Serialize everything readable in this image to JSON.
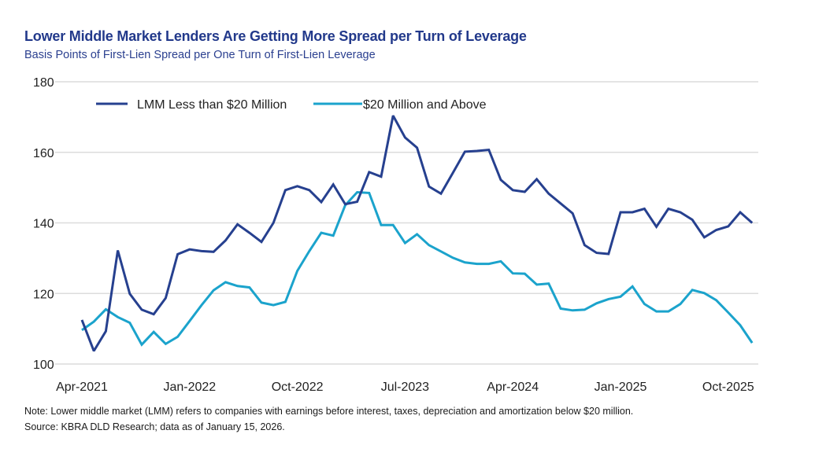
{
  "header": {
    "title": "Lower Middle Market Lenders Are Getting More Spread per Turn of Leverage",
    "subtitle": "Basis Points of First-Lien Spread per One Turn of First-Lien Leverage"
  },
  "footer": {
    "note": "Note: Lower middle market (LMM) refers to companies with earnings before interest, taxes, depreciation and amortization below $20 million.",
    "source": "Source: KBRA DLD Research; data as of January 15, 2026."
  },
  "chart_data": {
    "type": "line",
    "title": "Lower Middle Market Lenders Are Getting More Spread per Turn of Leverage",
    "subtitle": "Basis Points of First-Lien Spread per One Turn of First-Lien Leverage",
    "xlabel": "",
    "ylabel": "",
    "ylim": [
      100,
      180
    ],
    "yticks": [
      100,
      120,
      140,
      160,
      180
    ],
    "grid": "horizontal",
    "legend_position": "top-left",
    "x": [
      "Apr-2021",
      "May-2021",
      "Jun-2021",
      "Jul-2021",
      "Aug-2021",
      "Sep-2021",
      "Oct-2021",
      "Nov-2021",
      "Dec-2021",
      "Jan-2022",
      "Feb-2022",
      "Mar-2022",
      "Apr-2022",
      "May-2022",
      "Jun-2022",
      "Jul-2022",
      "Aug-2022",
      "Sep-2022",
      "Oct-2022",
      "Nov-2022",
      "Dec-2022",
      "Jan-2023",
      "Feb-2023",
      "Mar-2023",
      "Apr-2023",
      "May-2023",
      "Jun-2023",
      "Jul-2023",
      "Aug-2023",
      "Sep-2023",
      "Oct-2023",
      "Nov-2023",
      "Dec-2023",
      "Jan-2024",
      "Feb-2024",
      "Mar-2024",
      "Apr-2024",
      "May-2024",
      "Jun-2024",
      "Jul-2024",
      "Aug-2024",
      "Sep-2024",
      "Oct-2024",
      "Nov-2024",
      "Dec-2024",
      "Jan-2025",
      "Feb-2025",
      "Mar-2025",
      "Apr-2025",
      "May-2025",
      "Jun-2025",
      "Jul-2025",
      "Aug-2025",
      "Sep-2025",
      "Oct-2025",
      "Nov-2025",
      "Dec-2025"
    ],
    "xtick_labels": [
      "Apr-2021",
      "Jan-2022",
      "Oct-2022",
      "Jul-2023",
      "Apr-2024",
      "Jan-2025",
      "Oct-2025"
    ],
    "series": [
      {
        "name": "LMM Less than $20 Million",
        "color": "#26408f",
        "values": [
          112.5,
          103.7,
          109.3,
          132.2,
          119.9,
          115.4,
          114.1,
          118.7,
          131.1,
          132.5,
          132.0,
          131.8,
          135.0,
          139.6,
          137.2,
          134.6,
          140.0,
          149.3,
          150.4,
          149.3,
          145.9,
          150.9,
          145.3,
          146.0,
          154.4,
          153.1,
          170.4,
          164.2,
          161.3,
          150.3,
          148.3,
          154.2,
          160.2,
          160.4,
          160.7,
          152.2,
          149.3,
          148.8,
          152.4,
          148.3,
          145.5,
          142.7,
          133.7,
          131.5,
          131.2,
          143.0,
          143.0,
          144.0,
          138.9,
          144.0,
          143.0,
          140.9,
          135.9,
          138.0,
          139.0,
          143.0,
          140.0
        ]
      },
      {
        "name": "$20 Million and Above",
        "color": "#1ba3cc",
        "values": [
          109.6,
          112.0,
          115.5,
          113.3,
          111.7,
          105.5,
          109.1,
          105.7,
          107.7,
          112.2,
          116.7,
          120.9,
          123.2,
          122.1,
          121.7,
          117.4,
          116.7,
          117.6,
          126.4,
          132.0,
          137.2,
          136.4,
          145.0,
          148.7,
          148.5,
          139.4,
          139.4,
          134.3,
          136.8,
          133.7,
          131.9,
          130.1,
          128.8,
          128.4,
          128.4,
          129.1,
          125.7,
          125.6,
          122.5,
          122.8,
          115.7,
          115.2,
          115.4,
          117.2,
          118.4,
          119.1,
          122.0,
          117.0,
          114.9,
          114.9,
          117.0,
          121.0,
          120.1,
          118.1,
          114.6,
          111.0,
          106.0
        ]
      }
    ]
  }
}
